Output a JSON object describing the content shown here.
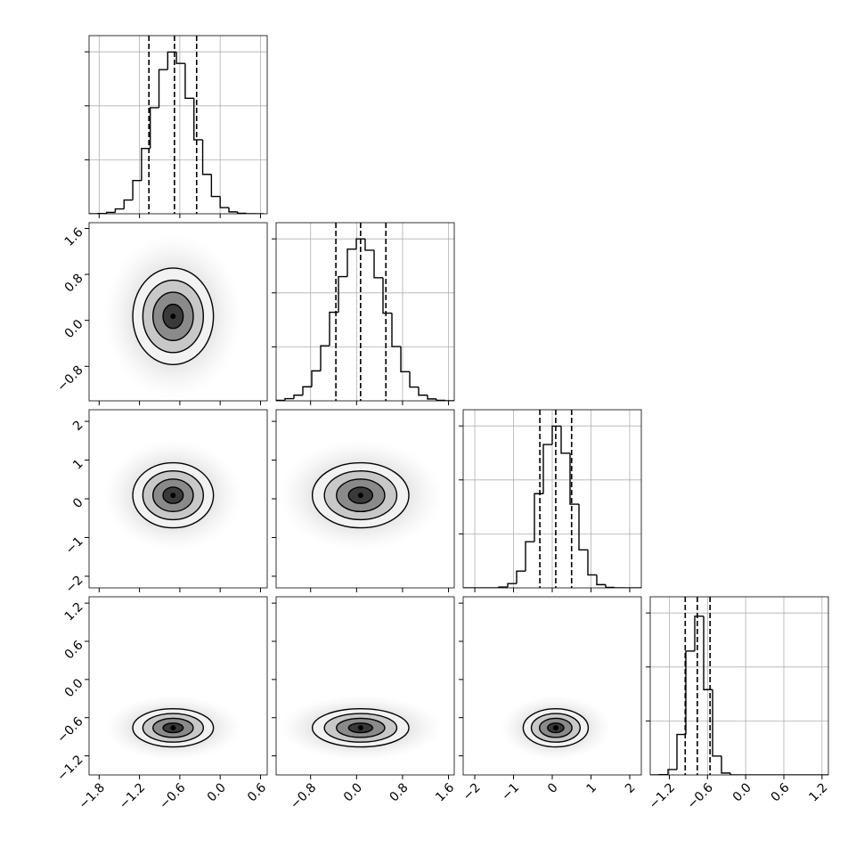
{
  "chart_data": [
    {
      "type": "histogram",
      "xlim": [
        -1.95,
        0.7
      ],
      "xticks": [
        {
          "value": -1.8,
          "label": "−1.8"
        },
        {
          "value": -1.2,
          "label": "−1.2"
        },
        {
          "value": -0.6,
          "label": "−0.6"
        },
        {
          "value": 0,
          "label": "0.0"
        },
        0.6
      ],
      "ylim": [
        0,
        660
      ],
      "yticks": [
        200,
        400,
        600
      ],
      "grid": true,
      "xtick_labels": false,
      "ytick_labels": false,
      "color": "#000000",
      "bins": [
        -1.95,
        -1.82,
        -1.69,
        -1.56,
        -1.43,
        -1.3,
        -1.17,
        -1.04,
        -0.91,
        -0.78,
        -0.65,
        -0.52,
        -0.39,
        -0.26,
        -0.13,
        0,
        0.13,
        0.26,
        0.39,
        0.52,
        0.65
      ],
      "counts": [
        0,
        1,
        5,
        18,
        51,
        123,
        242,
        393,
        534,
        599,
        557,
        428,
        274,
        146,
        64,
        23,
        7,
        2,
        0,
        0
      ],
      "quantiles": [
        -1.06,
        -0.68,
        -0.35
      ]
    },
    {
      "type": "contour",
      "xlim": [
        -1.95,
        0.7
      ],
      "xticks": [
        {
          "value": -1.8,
          "label": "−1.8"
        },
        {
          "value": -1.2,
          "label": "−1.2"
        },
        {
          "value": -0.6,
          "label": "−0.6"
        },
        {
          "value": 0,
          "label": "0.0"
        },
        0.6
      ],
      "ylim": [
        -1.4,
        1.7
      ],
      "yticks": [
        {
          "value": -0.8,
          "label": "−0.8"
        },
        {
          "value": 0,
          "label": "0.0"
        },
        0.8,
        1.6
      ],
      "xtick_labels": false,
      "ytick_labels": true,
      "color": "#000000",
      "cx": -0.7,
      "cy": 0.07,
      "contours": [
        {
          "rx": 0.15,
          "ry": 0.21
        },
        {
          "rx": 0.3,
          "ry": 0.42
        },
        {
          "rx": 0.45,
          "ry": 0.63
        },
        {
          "rx": 0.6,
          "ry": 0.84
        }
      ]
    },
    {
      "type": "histogram",
      "xlim": [
        -1.4,
        1.7
      ],
      "xticks": [
        {
          "value": -0.8,
          "label": "−0.8"
        },
        {
          "value": 0,
          "label": "0.0"
        },
        0.8,
        1.6
      ],
      "ylim": [
        0,
        660
      ],
      "yticks": [
        200,
        400,
        600
      ],
      "grid": true,
      "xtick_labels": false,
      "ytick_labels": false,
      "color": "#000000",
      "bins": [
        -1.4,
        -1.245,
        -1.09,
        -0.935,
        -0.78,
        -0.625,
        -0.47,
        -0.315,
        -0.16,
        -0.005,
        0.15,
        0.305,
        0.46,
        0.615,
        0.77,
        0.925,
        1.08,
        1.235,
        1.39,
        1.545,
        1.7
      ],
      "counts": [
        2,
        8,
        21,
        52,
        111,
        204,
        328,
        460,
        562,
        600,
        558,
        456,
        325,
        201,
        108,
        51,
        21,
        7,
        2,
        0
      ],
      "quantiles": [
        -0.36,
        0.07,
        0.51
      ]
    },
    {
      "type": "contour",
      "xlim": [
        -1.95,
        0.7
      ],
      "xticks": [
        {
          "value": -1.8,
          "label": "−1.8"
        },
        {
          "value": -1.2,
          "label": "−1.2"
        },
        {
          "value": -0.6,
          "label": "−0.6"
        },
        {
          "value": 0,
          "label": "0.0"
        },
        0.6
      ],
      "ylim": [
        -2.3,
        2.3
      ],
      "yticks": [
        {
          "value": -2,
          "label": "−2"
        },
        {
          "value": -1,
          "label": "−1"
        },
        0,
        1,
        2
      ],
      "xtick_labels": false,
      "ytick_labels": true,
      "color": "#000000",
      "cx": -0.7,
      "cy": 0.09,
      "contours": [
        {
          "rx": 0.15,
          "ry": 0.21
        },
        {
          "rx": 0.3,
          "ry": 0.42
        },
        {
          "rx": 0.45,
          "ry": 0.63
        },
        {
          "rx": 0.6,
          "ry": 0.84
        }
      ]
    },
    {
      "type": "contour",
      "xlim": [
        -1.4,
        1.7
      ],
      "xticks": [
        {
          "value": -0.8,
          "label": "−0.8"
        },
        {
          "value": 0,
          "label": "0.0"
        },
        0.8,
        1.6
      ],
      "ylim": [
        -2.3,
        2.3
      ],
      "yticks": [
        {
          "value": -2,
          "label": "−2"
        },
        {
          "value": -1,
          "label": "−1"
        },
        0,
        1,
        2
      ],
      "xtick_labels": false,
      "ytick_labels": false,
      "color": "#000000",
      "cx": 0.07,
      "cy": 0.09,
      "contours": [
        {
          "rx": 0.21,
          "ry": 0.21
        },
        {
          "rx": 0.42,
          "ry": 0.42
        },
        {
          "rx": 0.63,
          "ry": 0.63
        },
        {
          "rx": 0.84,
          "ry": 0.84
        }
      ]
    },
    {
      "type": "histogram",
      "xlim": [
        -2.3,
        2.3
      ],
      "xticks": [
        {
          "value": -2,
          "label": "−2"
        },
        {
          "value": -1,
          "label": "−1"
        },
        0,
        1,
        2
      ],
      "ylim": [
        0,
        660
      ],
      "yticks": [
        200,
        400,
        600
      ],
      "grid": true,
      "xtick_labels": false,
      "ytick_labels": false,
      "color": "#000000",
      "bins": [
        -2.3,
        -2.07,
        -1.84,
        -1.61,
        -1.38,
        -1.15,
        -0.92,
        -0.69,
        -0.46,
        -0.23,
        0,
        0.23,
        0.46,
        0.69,
        0.92,
        1.15,
        1.38,
        1.61,
        1.84,
        2.07,
        2.3
      ],
      "counts": [
        0,
        0,
        0,
        0,
        3,
        16,
        62,
        171,
        349,
        531,
        599,
        499,
        310,
        141,
        48,
        12,
        2,
        0,
        0,
        0
      ],
      "quantiles": [
        -0.32,
        0.09,
        0.5
      ]
    },
    {
      "type": "contour",
      "xlim": [
        -1.95,
        0.7
      ],
      "xticks": [
        {
          "value": -1.8,
          "label": "−1.8"
        },
        {
          "value": -1.2,
          "label": "−1.2"
        },
        {
          "value": -0.6,
          "label": "−0.6"
        },
        {
          "value": 0,
          "label": "0.0"
        },
        0.6
      ],
      "ylim": [
        -1.5,
        1.3
      ],
      "yticks": [
        {
          "value": -1.2,
          "label": "−1.2"
        },
        {
          "value": -0.6,
          "label": "−0.6"
        },
        {
          "value": 0,
          "label": "0.0"
        },
        0.6,
        1.2
      ],
      "xtick_labels": true,
      "ytick_labels": true,
      "color": "#000000",
      "cx": -0.7,
      "cy": -0.76,
      "contours": [
        {
          "rx": 0.15,
          "ry": 0.075
        },
        {
          "rx": 0.3,
          "ry": 0.15
        },
        {
          "rx": 0.45,
          "ry": 0.225
        },
        {
          "rx": 0.6,
          "ry": 0.3
        }
      ]
    },
    {
      "type": "contour",
      "xlim": [
        -1.4,
        1.7
      ],
      "xticks": [
        {
          "value": -0.8,
          "label": "−0.8"
        },
        {
          "value": 0,
          "label": "0.0"
        },
        0.8,
        1.6
      ],
      "ylim": [
        -1.5,
        1.3
      ],
      "yticks": [
        {
          "value": -1.2,
          "label": "−1.2"
        },
        {
          "value": -0.6,
          "label": "−0.6"
        },
        {
          "value": 0,
          "label": "0.0"
        },
        0.6,
        1.2
      ],
      "xtick_labels": true,
      "ytick_labels": false,
      "color": "#000000",
      "cx": 0.07,
      "cy": -0.76,
      "contours": [
        {
          "rx": 0.21,
          "ry": 0.075
        },
        {
          "rx": 0.42,
          "ry": 0.15
        },
        {
          "rx": 0.63,
          "ry": 0.225
        },
        {
          "rx": 0.84,
          "ry": 0.3
        }
      ]
    },
    {
      "type": "contour",
      "xlim": [
        -2.3,
        2.3
      ],
      "xticks": [
        {
          "value": -2,
          "label": "−2"
        },
        {
          "value": -1,
          "label": "−1"
        },
        0,
        1,
        2
      ],
      "ylim": [
        -1.5,
        1.3
      ],
      "yticks": [
        {
          "value": -1.2,
          "label": "−1.2"
        },
        {
          "value": -0.6,
          "label": "−0.6"
        },
        {
          "value": 0,
          "label": "0.0"
        },
        0.6,
        1.2
      ],
      "xtick_labels": true,
      "ytick_labels": false,
      "color": "#000000",
      "cx": 0.09,
      "cy": -0.76,
      "contours": [
        {
          "rx": 0.21,
          "ry": 0.075
        },
        {
          "rx": 0.42,
          "ry": 0.15
        },
        {
          "rx": 0.63,
          "ry": 0.225
        },
        {
          "rx": 0.84,
          "ry": 0.3
        }
      ]
    },
    {
      "type": "histogram",
      "xlim": [
        -1.5,
        1.3
      ],
      "xticks": [
        {
          "value": -1.2,
          "label": "−1.2"
        },
        {
          "value": -0.6,
          "label": "−0.6"
        },
        {
          "value": 0,
          "label": "0.0"
        },
        0.6,
        1.2
      ],
      "ylim": [
        0,
        660
      ],
      "yticks": [
        200,
        400,
        600
      ],
      "grid": true,
      "xtick_labels": true,
      "ytick_labels": false,
      "color": "#000000",
      "bins": [
        -1.5,
        -1.36,
        -1.22,
        -1.08,
        -0.94,
        -0.8,
        -0.66,
        -0.52,
        -0.38,
        -0.24,
        -0.1,
        0.04,
        0.18,
        0.32,
        0.46,
        0.6,
        0.74,
        0.88,
        1.02,
        1.16,
        1.3
      ],
      "counts": [
        0,
        1,
        20,
        150,
        459,
        588,
        316,
        70,
        7,
        0,
        0,
        0,
        0,
        0,
        0,
        0,
        0,
        0,
        0,
        0
      ],
      "quantiles": [
        -0.95,
        -0.76,
        -0.56
      ]
    }
  ]
}
